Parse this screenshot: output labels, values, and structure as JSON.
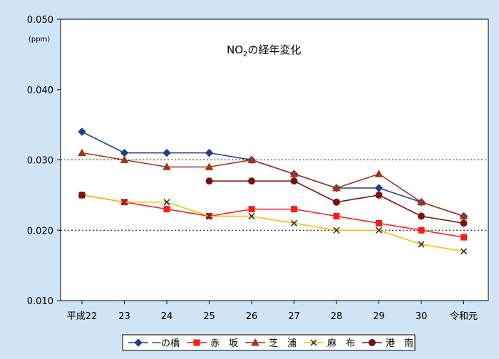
{
  "chart_data": {
    "type": "line",
    "title": "NO",
    "title_sub": "2",
    "title_suffix": "の経年変化",
    "unit_label": "(ppm)",
    "categories": [
      "平成22",
      "23",
      "24",
      "25",
      "26",
      "27",
      "28",
      "29",
      "30",
      "令和元"
    ],
    "y_ticks": [
      "0.010",
      "0.020",
      "0.030",
      "0.040",
      "0.050"
    ],
    "ylim": [
      0.01,
      0.05
    ],
    "grid": "dotted horizontal lines at 0.020 and 0.030",
    "legend_position": "bottom",
    "series": [
      {
        "name": "一の橋",
        "color": "#1f3f8a",
        "marker": "diamond",
        "values": [
          0.034,
          0.031,
          0.031,
          0.031,
          0.03,
          0.028,
          0.026,
          0.026,
          0.024,
          0.022
        ]
      },
      {
        "name": "赤　坂",
        "color": "#ff1a1a",
        "marker": "square",
        "values": [
          0.025,
          0.024,
          0.023,
          0.022,
          0.023,
          0.023,
          0.022,
          0.021,
          0.02,
          0.019
        ]
      },
      {
        "name": "芝　浦",
        "color": "#a0341d",
        "marker": "triangle",
        "values": [
          0.031,
          0.03,
          0.029,
          0.029,
          0.03,
          0.028,
          0.026,
          0.028,
          0.024,
          0.022
        ]
      },
      {
        "name": "麻　布",
        "color": "#f5c400",
        "marker": "x",
        "values": [
          0.025,
          0.024,
          0.024,
          0.022,
          0.022,
          0.021,
          0.02,
          0.02,
          0.018,
          0.017
        ]
      },
      {
        "name": "港　南",
        "color": "#7a1010",
        "marker": "circle",
        "values": [
          0.025,
          null,
          null,
          0.027,
          0.027,
          0.027,
          0.024,
          0.025,
          0.022,
          0.021
        ]
      }
    ]
  }
}
